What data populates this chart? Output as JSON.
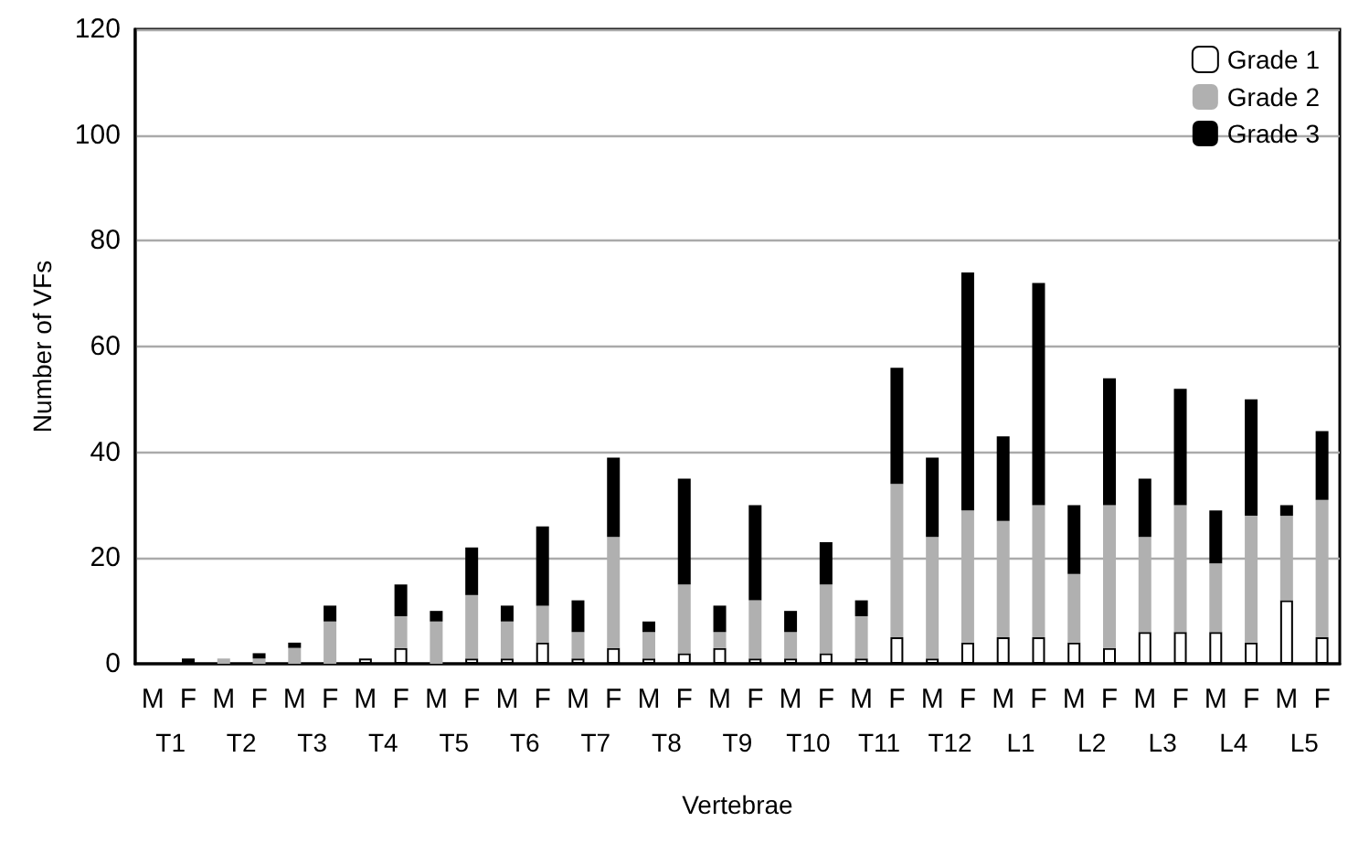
{
  "chart_data": {
    "type": "bar",
    "stacked": true,
    "xlabel": "Vertebrae",
    "ylabel": "Number of VFs",
    "categories": [
      "M",
      "F",
      "M",
      "F",
      "M",
      "F",
      "M",
      "F",
      "M",
      "F",
      "M",
      "F",
      "M",
      "F",
      "M",
      "F",
      "M",
      "F",
      "M",
      "F",
      "M",
      "F",
      "M",
      "F",
      "M",
      "F",
      "M",
      "F",
      "M",
      "F",
      "M",
      "F",
      "M",
      "F"
    ],
    "annotations": [
      "T1",
      "T2",
      "T3",
      "T4",
      "T5",
      "T6",
      "T7",
      "T8",
      "T9",
      "T10",
      "T11",
      "T12",
      "L1",
      "L2",
      "L3",
      "L4",
      "L5"
    ],
    "series": [
      {
        "name": "Grade 1",
        "color": "#ffffff",
        "values": [
          0,
          0,
          0,
          0,
          0,
          0,
          1,
          3,
          0,
          1,
          1,
          4,
          1,
          3,
          1,
          2,
          3,
          1,
          1,
          2,
          1,
          5,
          1,
          4,
          5,
          5,
          4,
          3,
          6,
          6,
          6,
          4,
          12,
          5
        ]
      },
      {
        "name": "Grade 2",
        "color": "#b0b0b0",
        "values": [
          0,
          0,
          1,
          1,
          3,
          8,
          0,
          6,
          8,
          12,
          7,
          7,
          5,
          21,
          5,
          13,
          3,
          11,
          5,
          13,
          8,
          29,
          23,
          25,
          22,
          25,
          13,
          27,
          18,
          24,
          13,
          24,
          16,
          26
        ]
      },
      {
        "name": "Grade 3",
        "color": "#000000",
        "values": [
          0,
          1,
          0,
          1,
          1,
          3,
          0,
          6,
          2,
          9,
          3,
          15,
          6,
          15,
          2,
          20,
          5,
          18,
          4,
          8,
          3,
          22,
          15,
          45,
          16,
          42,
          13,
          24,
          11,
          22,
          10,
          22,
          2,
          13
        ]
      }
    ],
    "ylim": [
      0,
      120
    ],
    "yticks": [
      0,
      20,
      40,
      60,
      80,
      100,
      120
    ],
    "grid": "y",
    "legend": "top right"
  }
}
